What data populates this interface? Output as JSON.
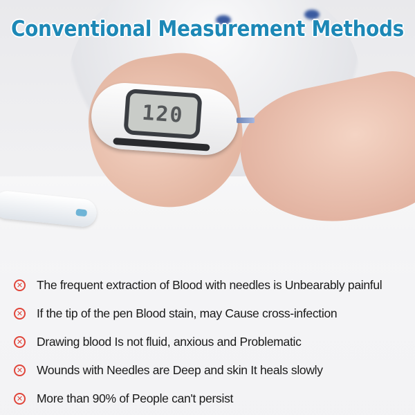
{
  "title": "Conventional Measurement Methods",
  "meter_display": "120",
  "accent_color": "#1d88b6",
  "icon_color": "#e0453a",
  "items": [
    {
      "icon": "x-circle-icon",
      "text": "The frequent extraction of Blood with needles is Unbearably painful"
    },
    {
      "icon": "x-circle-icon",
      "text": "If the tip of the pen Blood stain, may Cause cross-infection"
    },
    {
      "icon": "x-circle-icon",
      "text": "Drawing blood Is not fluid, anxious and Problematic"
    },
    {
      "icon": "x-circle-icon",
      "text": "Wounds with Needles are Deep and skin It heals slowly"
    },
    {
      "icon": "x-circle-icon",
      "text": "More than 90% of People can't persist"
    }
  ]
}
